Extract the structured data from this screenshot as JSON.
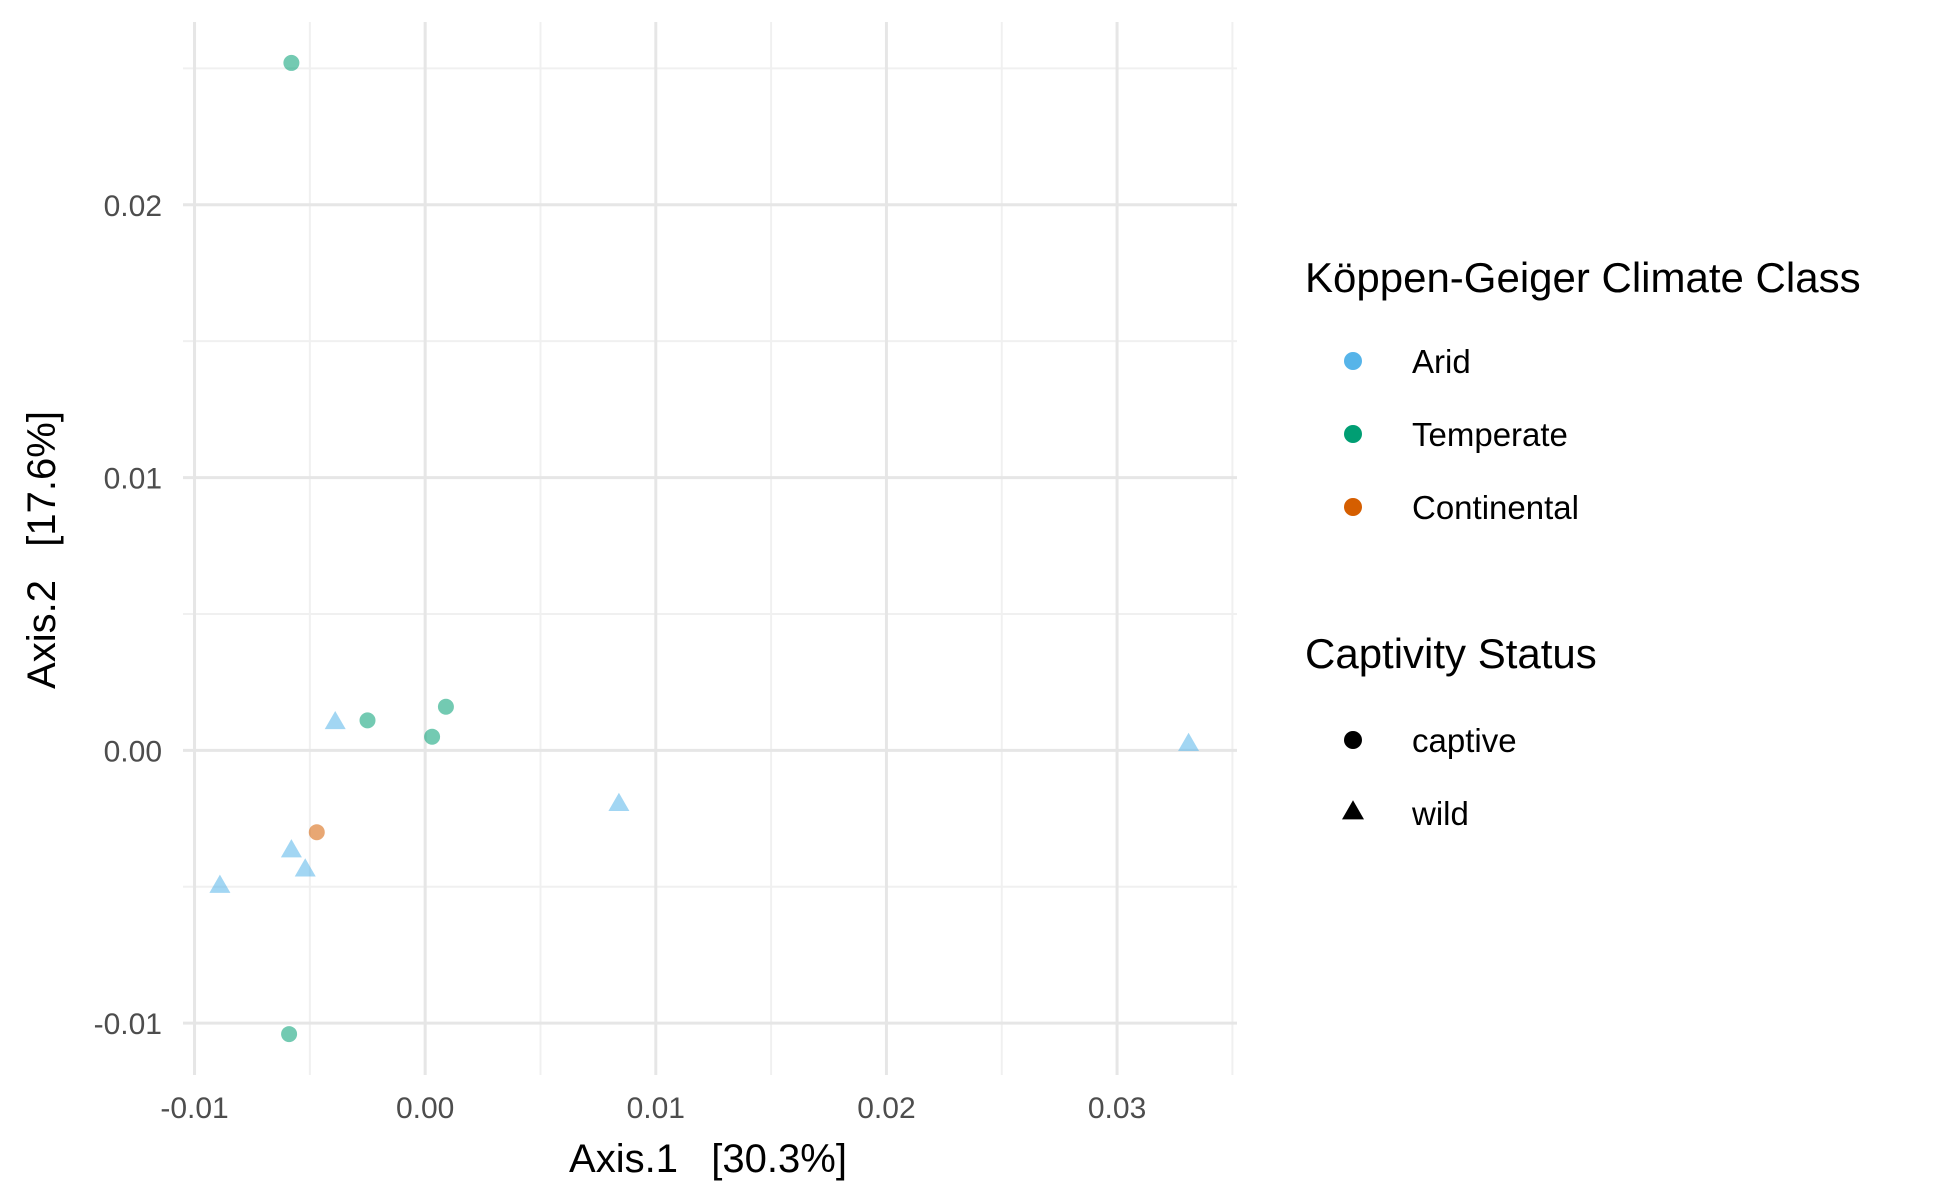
{
  "chart_data": {
    "type": "scatter",
    "title": "",
    "xlabel": "Axis.1   [30.3%]",
    "ylabel": "Axis.2   [17.6%]",
    "xlim": [
      -0.0105,
      0.0352
    ],
    "ylim": [
      -0.0119,
      0.0267
    ],
    "x_ticks": [
      -0.01,
      0.0,
      0.01,
      0.02,
      0.03
    ],
    "x_tick_labels": [
      "-0.01",
      "0.00",
      "0.01",
      "0.02",
      "0.03"
    ],
    "y_ticks": [
      -0.01,
      0.0,
      0.01,
      0.02
    ],
    "y_tick_labels": [
      "-0.01",
      "0.00",
      "0.01",
      "0.02"
    ],
    "grid": true,
    "legend_position": "right",
    "color_legend": {
      "title": "Köppen-Geiger Climate Class",
      "entries": [
        {
          "label": "Arid",
          "color": "#56B4E9"
        },
        {
          "label": "Temperate",
          "color": "#009E73"
        },
        {
          "label": "Continental",
          "color": "#D55E00"
        }
      ]
    },
    "shape_legend": {
      "title": "Captivity Status",
      "entries": [
        {
          "label": "captive",
          "shape": "circle"
        },
        {
          "label": "wild",
          "shape": "triangle"
        }
      ]
    },
    "point_opacity": 0.55,
    "points": [
      {
        "x": -0.0058,
        "y": 0.0252,
        "climate": "Temperate",
        "status": "captive"
      },
      {
        "x": -0.0025,
        "y": 0.0011,
        "climate": "Temperate",
        "status": "captive"
      },
      {
        "x": 0.0009,
        "y": 0.0016,
        "climate": "Temperate",
        "status": "captive"
      },
      {
        "x": 0.0003,
        "y": 0.0005,
        "climate": "Temperate",
        "status": "captive"
      },
      {
        "x": -0.0059,
        "y": -0.0104,
        "climate": "Temperate",
        "status": "captive"
      },
      {
        "x": -0.0047,
        "y": -0.003,
        "climate": "Continental",
        "status": "captive"
      },
      {
        "x": -0.0039,
        "y": 0.001,
        "climate": "Arid",
        "status": "wild"
      },
      {
        "x": -0.0058,
        "y": -0.0037,
        "climate": "Arid",
        "status": "wild"
      },
      {
        "x": -0.0052,
        "y": -0.0044,
        "climate": "Arid",
        "status": "wild"
      },
      {
        "x": -0.0089,
        "y": -0.005,
        "climate": "Arid",
        "status": "wild"
      },
      {
        "x": 0.0084,
        "y": -0.002,
        "climate": "Arid",
        "status": "wild"
      },
      {
        "x": 0.0331,
        "y": 0.0002,
        "climate": "Arid",
        "status": "wild"
      }
    ]
  }
}
